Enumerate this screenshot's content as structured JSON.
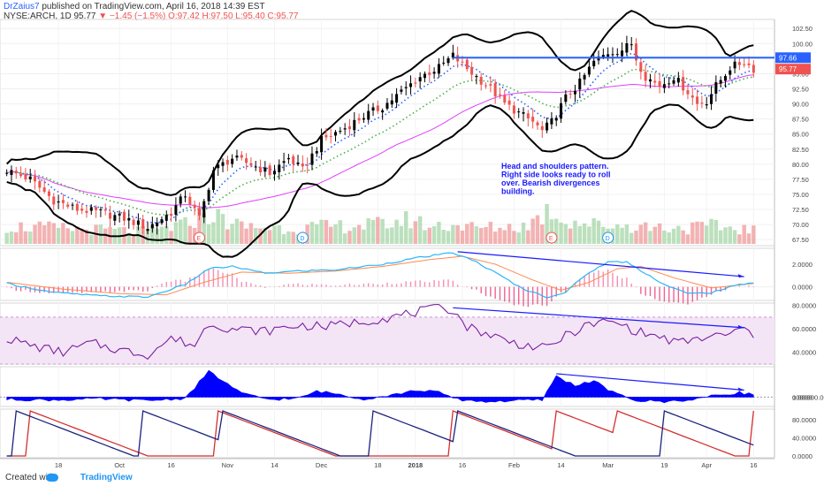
{
  "header": {
    "author": "DrZaius7",
    "published": "published on TradingView.com, April 16, 2018 14:39 EST",
    "symbol": "NYSE:ARCH, 1D",
    "last": "95.77",
    "change": "▼ −1.45 (−1.5%)",
    "ohlc": "O:97.42 H:97.50 L:95.40 C:95.77"
  },
  "footer": {
    "created_with": "Created with",
    "brand": "TradingView"
  },
  "colors": {
    "up": "#000000",
    "down": "#ef5350",
    "bands": "#000000",
    "sma": "#e040fb",
    "ema_fast": "#2962ff",
    "ema_slow": "#4caf50",
    "hline": "#2962ff",
    "macd": "#29b6f6",
    "signal": "#ff8a50",
    "rsi": "#7b1fa2",
    "volume_osc": "#0000ff",
    "aroon_up": "#d32f2f",
    "aroon_down": "#1a237e"
  },
  "annotation": {
    "lines": [
      "Head and shoulders pattern.",
      "Right side looks ready to roll",
      "over.  Bearish divergences",
      "building."
    ]
  },
  "x_axis": {
    "labels": [
      {
        "label": "18",
        "i": 11
      },
      {
        "label": "Oct",
        "i": 24
      },
      {
        "label": "16",
        "i": 35
      },
      {
        "label": "Nov",
        "i": 47
      },
      {
        "label": "14",
        "i": 57
      },
      {
        "label": "Dec",
        "i": 67
      },
      {
        "label": "18",
        "i": 79
      },
      {
        "label": "2018",
        "i": 87
      },
      {
        "label": "16",
        "i": 97
      },
      {
        "label": "Feb",
        "i": 108
      },
      {
        "label": "14",
        "i": 118
      },
      {
        "label": "Mar",
        "i": 128
      },
      {
        "label": "19",
        "i": 140
      },
      {
        "label": "Apr",
        "i": 149
      },
      {
        "label": "16",
        "i": 159
      }
    ]
  },
  "chart_data": [
    {
      "type": "candlestick",
      "name": "price",
      "y_ticks": [
        "102.50",
        "100.00",
        "97.50",
        "95.00",
        "92.50",
        "90.00",
        "87.50",
        "85.00",
        "82.50",
        "80.00",
        "77.50",
        "75.00",
        "72.50",
        "70.00",
        "67.50"
      ],
      "ylim": [
        66.5,
        104
      ],
      "last_price_label": "95.77",
      "horizontal_line_label": "97.66",
      "horizontal_line_value": 97.66,
      "horizontal_line_from_i": 95,
      "event_markers": [
        {
          "label": "E",
          "i": 41
        },
        {
          "label": "D",
          "i": 63
        },
        {
          "label": "E",
          "i": 116
        },
        {
          "label": "D",
          "i": 128
        }
      ],
      "close_anchors": [
        [
          0,
          79
        ],
        [
          5,
          77.5
        ],
        [
          10,
          74
        ],
        [
          15,
          72.5
        ],
        [
          20,
          72
        ],
        [
          25,
          71
        ],
        [
          30,
          69.5
        ],
        [
          35,
          72
        ],
        [
          38,
          75
        ],
        [
          41,
          71
        ],
        [
          44,
          79
        ],
        [
          48,
          81
        ],
        [
          52,
          80
        ],
        [
          56,
          78.5
        ],
        [
          60,
          81
        ],
        [
          63,
          79
        ],
        [
          67,
          84
        ],
        [
          72,
          86
        ],
        [
          76,
          88
        ],
        [
          80,
          89.5
        ],
        [
          84,
          92
        ],
        [
          88,
          94.5
        ],
        [
          92,
          96
        ],
        [
          95,
          98
        ],
        [
          97,
          96.5
        ],
        [
          100,
          94.5
        ],
        [
          103,
          92.5
        ],
        [
          106,
          90
        ],
        [
          109,
          88.5
        ],
        [
          112,
          87
        ],
        [
          114,
          85.5
        ],
        [
          116,
          87
        ],
        [
          119,
          91
        ],
        [
          122,
          93.5
        ],
        [
          125,
          97
        ],
        [
          128,
          98.5
        ],
        [
          131,
          99
        ],
        [
          133,
          100
        ],
        [
          134,
          97.5
        ],
        [
          136,
          94.5
        ],
        [
          139,
          93
        ],
        [
          142,
          94.5
        ],
        [
          145,
          92
        ],
        [
          147,
          90
        ],
        [
          149,
          90.5
        ],
        [
          151,
          93
        ],
        [
          154,
          96
        ],
        [
          157,
          97
        ],
        [
          159,
          95.77
        ]
      ],
      "volume_anchors": [
        [
          0,
          0.5
        ],
        [
          10,
          0.45
        ],
        [
          20,
          0.4
        ],
        [
          30,
          0.35
        ],
        [
          38,
          0.55
        ],
        [
          42,
          0.9
        ],
        [
          50,
          0.5
        ],
        [
          60,
          0.45
        ],
        [
          70,
          0.5
        ],
        [
          80,
          0.55
        ],
        [
          86,
          0.7
        ],
        [
          90,
          0.5
        ],
        [
          95,
          0.55
        ],
        [
          100,
          0.45
        ],
        [
          110,
          0.5
        ],
        [
          114,
          0.8
        ],
        [
          116,
          1.0
        ],
        [
          118,
          0.7
        ],
        [
          125,
          0.55
        ],
        [
          135,
          0.5
        ],
        [
          145,
          0.45
        ],
        [
          150,
          0.5
        ],
        [
          159,
          0.4
        ]
      ]
    },
    {
      "type": "line",
      "name": "macd",
      "y_ticks": [
        "2.0000",
        "0.0000"
      ],
      "ylim": [
        -1.2,
        3.4
      ],
      "macd_anchors": [
        [
          0,
          0.3
        ],
        [
          10,
          -0.5
        ],
        [
          20,
          -0.8
        ],
        [
          30,
          -0.9
        ],
        [
          38,
          0.2
        ],
        [
          43,
          1.6
        ],
        [
          48,
          1.8
        ],
        [
          55,
          1.2
        ],
        [
          62,
          1.4
        ],
        [
          70,
          1.5
        ],
        [
          80,
          2.0
        ],
        [
          88,
          2.6
        ],
        [
          95,
          3.0
        ],
        [
          100,
          2.2
        ],
        [
          105,
          1.0
        ],
        [
          110,
          -0.2
        ],
        [
          115,
          -0.9
        ],
        [
          119,
          -0.5
        ],
        [
          123,
          1.0
        ],
        [
          128,
          2.2
        ],
        [
          132,
          2.2
        ],
        [
          136,
          1.2
        ],
        [
          140,
          0.2
        ],
        [
          145,
          -0.6
        ],
        [
          150,
          -0.5
        ],
        [
          155,
          0.1
        ],
        [
          159,
          0.4
        ]
      ],
      "signal_anchors": [
        [
          0,
          0.4
        ],
        [
          12,
          -0.2
        ],
        [
          24,
          -0.6
        ],
        [
          34,
          -0.7
        ],
        [
          42,
          0.4
        ],
        [
          50,
          1.3
        ],
        [
          60,
          1.2
        ],
        [
          70,
          1.4
        ],
        [
          80,
          1.8
        ],
        [
          90,
          2.4
        ],
        [
          97,
          2.7
        ],
        [
          104,
          2.0
        ],
        [
          112,
          0.6
        ],
        [
          118,
          -0.3
        ],
        [
          124,
          0.4
        ],
        [
          130,
          1.6
        ],
        [
          135,
          1.8
        ],
        [
          142,
          0.8
        ],
        [
          150,
          -0.1
        ],
        [
          159,
          0.3
        ]
      ]
    },
    {
      "type": "line",
      "name": "rsi",
      "y_ticks": [
        "80.0000",
        "60.0000",
        "40.0000"
      ],
      "ylim": [
        30,
        82
      ],
      "band": [
        30,
        70
      ],
      "rsi_anchors": [
        [
          0,
          52
        ],
        [
          6,
          45
        ],
        [
          12,
          40
        ],
        [
          18,
          48
        ],
        [
          24,
          42
        ],
        [
          30,
          38
        ],
        [
          35,
          52
        ],
        [
          40,
          46
        ],
        [
          43,
          65
        ],
        [
          48,
          60
        ],
        [
          55,
          58
        ],
        [
          62,
          63
        ],
        [
          68,
          62
        ],
        [
          75,
          66
        ],
        [
          82,
          70
        ],
        [
          88,
          75
        ],
        [
          93,
          78
        ],
        [
          95,
          76
        ],
        [
          98,
          62
        ],
        [
          103,
          55
        ],
        [
          108,
          48
        ],
        [
          112,
          45
        ],
        [
          115,
          43
        ],
        [
          118,
          52
        ],
        [
          123,
          62
        ],
        [
          127,
          66
        ],
        [
          130,
          65
        ],
        [
          134,
          58
        ],
        [
          138,
          54
        ],
        [
          143,
          48
        ],
        [
          148,
          52
        ],
        [
          153,
          55
        ],
        [
          157,
          60
        ],
        [
          159,
          55
        ]
      ]
    },
    {
      "type": "area",
      "name": "volume_oscillator",
      "y_ticks": [
        "1000000.0000",
        "0.0000"
      ],
      "ylim": [
        -400000000,
        1300000000
      ],
      "osc_anchors": [
        [
          0,
          -100000000
        ],
        [
          10,
          -120000000
        ],
        [
          20,
          -80000000
        ],
        [
          30,
          -150000000
        ],
        [
          38,
          -50000000
        ],
        [
          43,
          1100000000
        ],
        [
          46,
          700000000
        ],
        [
          50,
          150000000
        ],
        [
          56,
          -100000000
        ],
        [
          62,
          -60000000
        ],
        [
          66,
          250000000
        ],
        [
          70,
          150000000
        ],
        [
          76,
          -80000000
        ],
        [
          82,
          100000000
        ],
        [
          88,
          300000000
        ],
        [
          92,
          200000000
        ],
        [
          96,
          -100000000
        ],
        [
          102,
          -200000000
        ],
        [
          108,
          -150000000
        ],
        [
          114,
          -120000000
        ],
        [
          117,
          900000000
        ],
        [
          121,
          500000000
        ],
        [
          125,
          700000000
        ],
        [
          129,
          200000000
        ],
        [
          134,
          -150000000
        ],
        [
          140,
          -200000000
        ],
        [
          146,
          -100000000
        ],
        [
          152,
          100000000
        ],
        [
          156,
          200000000
        ],
        [
          159,
          100000000
        ]
      ]
    },
    {
      "type": "line",
      "name": "aroon",
      "y_ticks": [
        "80.0000",
        "40.0000",
        "0.0000"
      ],
      "ylim": [
        -4,
        104
      ],
      "aroon_up_resets": [
        5,
        45,
        95,
        117,
        130,
        159
      ],
      "aroon_down_resets": [
        2,
        29,
        46,
        78,
        96,
        140
      ]
    }
  ]
}
